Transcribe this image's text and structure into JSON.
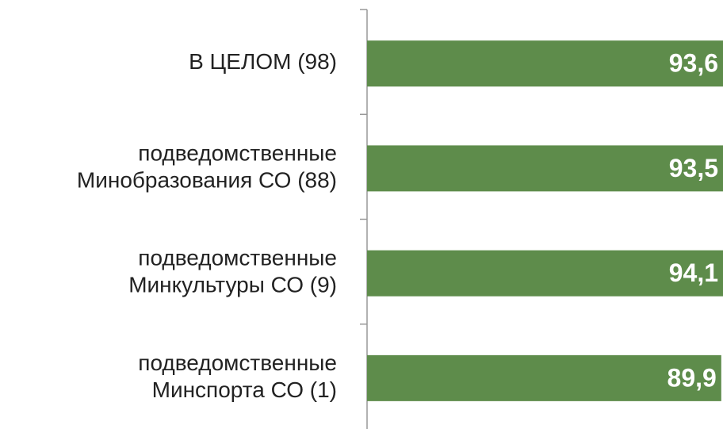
{
  "chart_data": {
    "type": "barh",
    "categories": [
      "В ЦЕЛОМ (98)",
      "подведомственные\nМинобразования СО (88)",
      "подведомственные\nМинкультуры СО (9)",
      "подведомственные\nМинспорта СО (1)"
    ],
    "values": [
      93.6,
      93.5,
      94.1,
      89.9
    ],
    "value_labels": [
      "93,6",
      "93,5",
      "94,1",
      "89,9"
    ],
    "color": "#5e8c4b"
  }
}
